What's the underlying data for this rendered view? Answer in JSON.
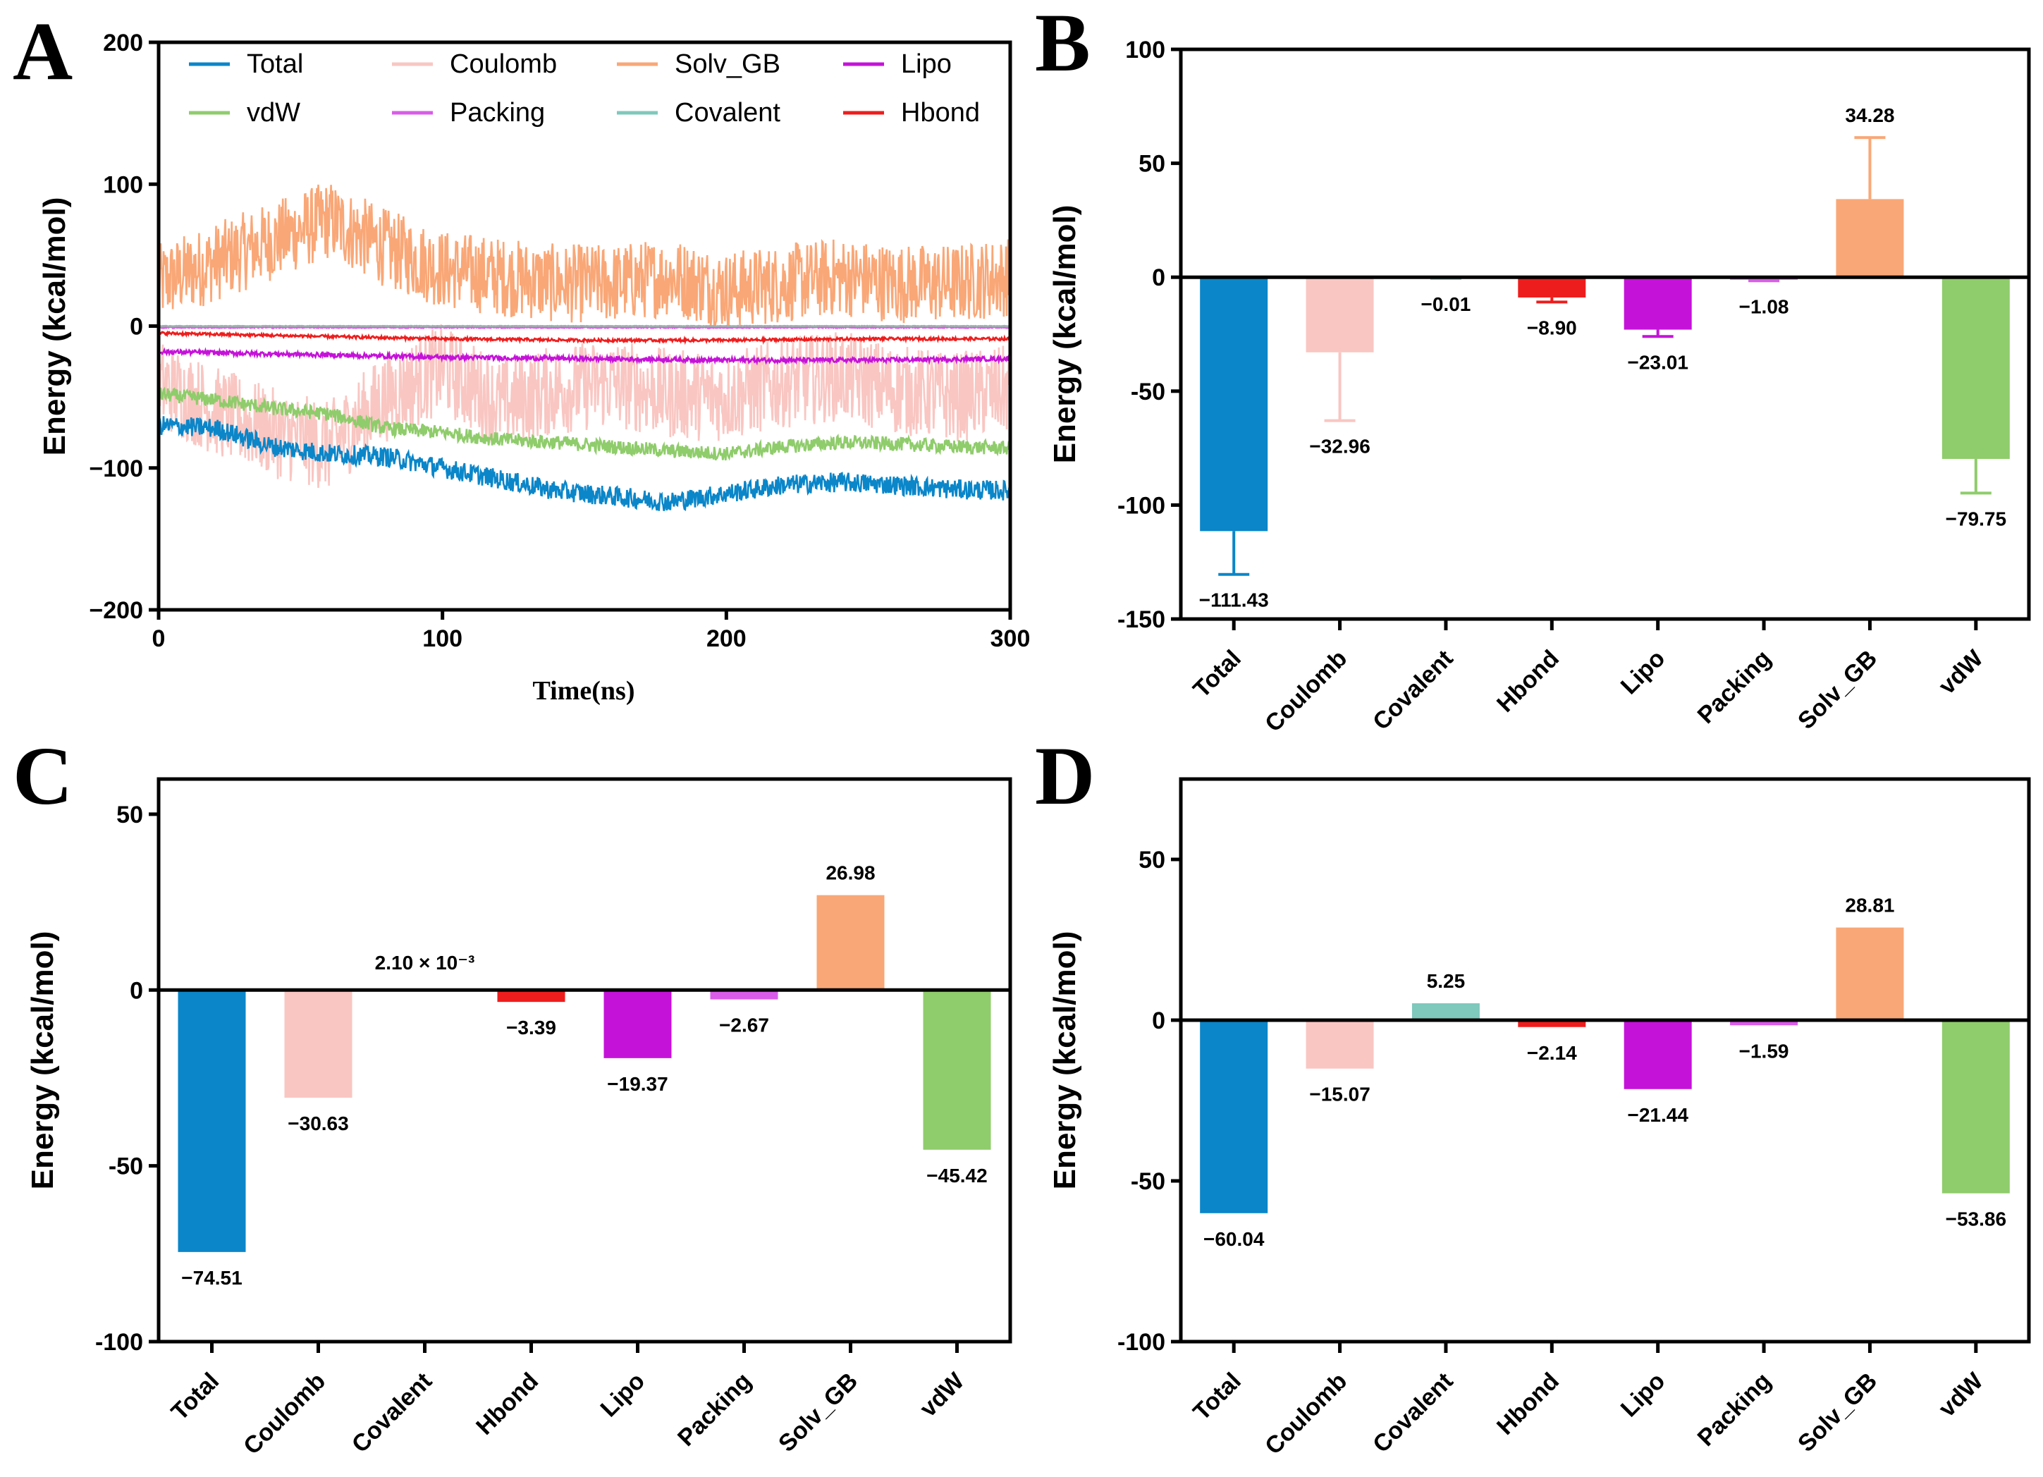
{
  "panels": {
    "A": {
      "letter": "A"
    },
    "B": {
      "letter": "B"
    },
    "C": {
      "letter": "C"
    },
    "D": {
      "letter": "D"
    }
  },
  "colors": {
    "Total": "#0a86c9",
    "Coulomb": "#f9c6c2",
    "Solv_GB": "#f9a777",
    "Lipo": "#c512d9",
    "vdW": "#8fcc6b",
    "Packing": "#d95ce8",
    "Covalent": "#7fc8bc",
    "Hbond": "#ee1d1d"
  },
  "chart_data": [
    {
      "panel": "A",
      "type": "line",
      "title": "",
      "xlabel": "Time(ns)",
      "ylabel": "Energy (kcal/mol)",
      "xlim": [
        0,
        300
      ],
      "ylim": [
        -200,
        200
      ],
      "xticks": [
        "0",
        "100",
        "200",
        "300"
      ],
      "yticks": [
        "200",
        "100",
        "0",
        "−100",
        "−200"
      ],
      "legend": [
        "Total",
        "Coulomb",
        "Solv_GB",
        "Lipo",
        "vdW",
        "Packing",
        "Covalent",
        "Hbond"
      ],
      "series": [
        {
          "name": "Total",
          "x": [
            0,
            20,
            40,
            60,
            80,
            100,
            120,
            140,
            160,
            180,
            200,
            220,
            240,
            260,
            280,
            300
          ],
          "values": [
            -70,
            -72,
            -85,
            -90,
            -92,
            -100,
            -108,
            -116,
            -120,
            -124,
            -118,
            -112,
            -110,
            -112,
            -115,
            -116
          ]
        },
        {
          "name": "Coulomb",
          "x": [
            0,
            20,
            40,
            60,
            80,
            100,
            120,
            140,
            160,
            180,
            200,
            220,
            240,
            260,
            280,
            300
          ],
          "values": [
            -40,
            -60,
            -75,
            -85,
            -50,
            -30,
            -55,
            -45,
            -40,
            -48,
            -50,
            -40,
            -35,
            -45,
            -50,
            -45
          ]
        },
        {
          "name": "Solv_GB",
          "x": [
            0,
            20,
            40,
            60,
            80,
            100,
            120,
            140,
            160,
            180,
            200,
            220,
            240,
            260,
            280,
            300
          ],
          "values": [
            30,
            45,
            60,
            75,
            55,
            40,
            35,
            30,
            30,
            35,
            25,
            30,
            35,
            30,
            30,
            35
          ]
        },
        {
          "name": "Lipo",
          "x": [
            0,
            50,
            100,
            150,
            200,
            250,
            300
          ],
          "values": [
            -18,
            -20,
            -22,
            -23,
            -24,
            -24,
            -23
          ]
        },
        {
          "name": "vdW",
          "x": [
            0,
            20,
            40,
            60,
            80,
            100,
            120,
            140,
            160,
            180,
            200,
            220,
            240,
            260,
            280,
            300
          ],
          "values": [
            -48,
            -52,
            -58,
            -62,
            -72,
            -75,
            -80,
            -82,
            -85,
            -88,
            -90,
            -85,
            -82,
            -83,
            -85,
            -86
          ]
        },
        {
          "name": "Packing",
          "x": [
            0,
            100,
            200,
            300
          ],
          "values": [
            -1,
            -1,
            -1,
            -1
          ]
        },
        {
          "name": "Covalent",
          "x": [
            0,
            100,
            200,
            300
          ],
          "values": [
            0,
            0,
            0,
            0
          ]
        },
        {
          "name": "Hbond",
          "x": [
            0,
            50,
            100,
            150,
            200,
            250,
            300
          ],
          "values": [
            -5,
            -7,
            -9,
            -10,
            -10,
            -9,
            -9
          ]
        }
      ]
    },
    {
      "panel": "B",
      "type": "bar",
      "ylabel": "Energy (kcal/mol)",
      "ylim": [
        -150,
        100
      ],
      "yticks": [
        "100",
        "50",
        "0",
        "-50",
        "-100",
        "-150"
      ],
      "categories": [
        "Total",
        "Coulomb",
        "Covalent",
        "Hbond",
        "Lipo",
        "Packing",
        "Solv_GB",
        "vdW"
      ],
      "values": [
        -111.43,
        -32.96,
        -0.01,
        -8.9,
        -23.01,
        -1.08,
        34.28,
        -79.75
      ],
      "errors": [
        19,
        30,
        0.5,
        2,
        3,
        0.5,
        27,
        15
      ],
      "labels": [
        "−111.43",
        "−32.96",
        "−0.01",
        "−8.90",
        "−23.01",
        "−1.08",
        "34.28",
        "−79.75"
      ]
    },
    {
      "panel": "C",
      "type": "bar",
      "ylabel": "Energy (kcal/mol)",
      "ylim": [
        -100,
        60
      ],
      "yticks": [
        "50",
        "0",
        "-50",
        "-100"
      ],
      "categories": [
        "Total",
        "Coulomb",
        "Covalent",
        "Hbond",
        "Lipo",
        "Packing",
        "Solv_GB",
        "vdW"
      ],
      "values": [
        -74.51,
        -30.63,
        0.0021,
        -3.39,
        -19.37,
        -2.67,
        26.98,
        -45.42
      ],
      "labels": [
        "−74.51",
        "−30.63",
        "2.10 × 10⁻³",
        "−3.39",
        "−19.37",
        "−2.67",
        "26.98",
        "−45.42"
      ]
    },
    {
      "panel": "D",
      "type": "bar",
      "ylabel": "Energy (kcal/mol)",
      "ylim": [
        -100,
        75
      ],
      "yticks": [
        "50",
        "0",
        "-50",
        "-100"
      ],
      "categories": [
        "Total",
        "Coulomb",
        "Covalent",
        "Hbond",
        "Lipo",
        "Packing",
        "Solv_GB",
        "vdW"
      ],
      "values": [
        -60.04,
        -15.07,
        5.25,
        -2.14,
        -21.44,
        -1.59,
        28.81,
        -53.86
      ],
      "labels": [
        "−60.04",
        "−15.07",
        "5.25",
        "−2.14",
        "−21.44",
        "−1.59",
        "28.81",
        "−53.86"
      ]
    }
  ]
}
